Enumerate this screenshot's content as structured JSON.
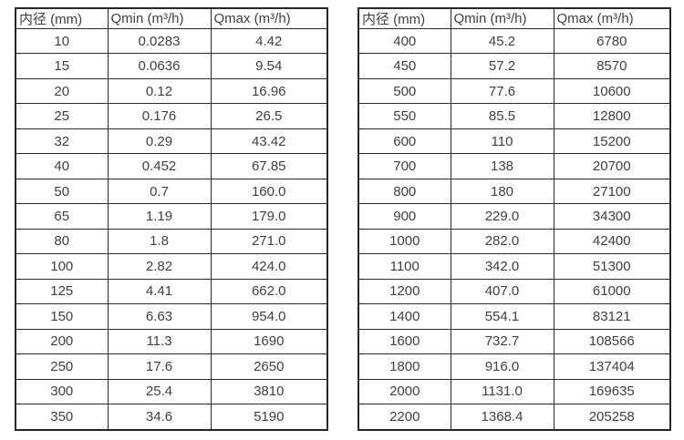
{
  "page": {
    "background_color": "#ffffff",
    "text_color": "#404040",
    "border_color": "#2a2a2a"
  },
  "tables": [
    {
      "name": "flow-rate-table-small-diameters",
      "headers": [
        "内径 (mm)",
        "Qmin (m³/h)",
        "Qmax (m³/h)"
      ],
      "rows": [
        [
          "10",
          "0.0283",
          "4.42"
        ],
        [
          "15",
          "0.0636",
          "9.54"
        ],
        [
          "20",
          "0.12",
          "16.96"
        ],
        [
          "25",
          "0.176",
          "26.5"
        ],
        [
          "32",
          "0.29",
          "43.42"
        ],
        [
          "40",
          "0.452",
          "67.85"
        ],
        [
          "50",
          "0.7",
          "160.0"
        ],
        [
          "65",
          "1.19",
          "179.0"
        ],
        [
          "80",
          "1.8",
          "271.0"
        ],
        [
          "100",
          "2.82",
          "424.0"
        ],
        [
          "125",
          "4.41",
          "662.0"
        ],
        [
          "150",
          "6.63",
          "954.0"
        ],
        [
          "200",
          "11.3",
          "1690"
        ],
        [
          "250",
          "17.6",
          "2650"
        ],
        [
          "300",
          "25.4",
          "3810"
        ],
        [
          "350",
          "34.6",
          "5190"
        ]
      ]
    },
    {
      "name": "flow-rate-table-large-diameters",
      "headers": [
        "内径 (mm)",
        "Qmin (m³/h)",
        "Qmax (m³/h)"
      ],
      "rows": [
        [
          "400",
          "45.2",
          "6780"
        ],
        [
          "450",
          "57.2",
          "8570"
        ],
        [
          "500",
          "77.6",
          "10600"
        ],
        [
          "550",
          "85.5",
          "12800"
        ],
        [
          "600",
          "110",
          "15200"
        ],
        [
          "700",
          "138",
          "20700"
        ],
        [
          "800",
          "180",
          "27100"
        ],
        [
          "900",
          "229.0",
          "34300"
        ],
        [
          "1000",
          "282.0",
          "42400"
        ],
        [
          "1100",
          "342.0",
          "51300"
        ],
        [
          "1200",
          "407.0",
          "61000"
        ],
        [
          "1400",
          "554.1",
          "83121"
        ],
        [
          "1600",
          "732.7",
          "108566"
        ],
        [
          "1800",
          "916.0",
          "137404"
        ],
        [
          "2000",
          "1131.0",
          "169635"
        ],
        [
          "2200",
          "1368.4",
          "205258"
        ]
      ]
    }
  ]
}
